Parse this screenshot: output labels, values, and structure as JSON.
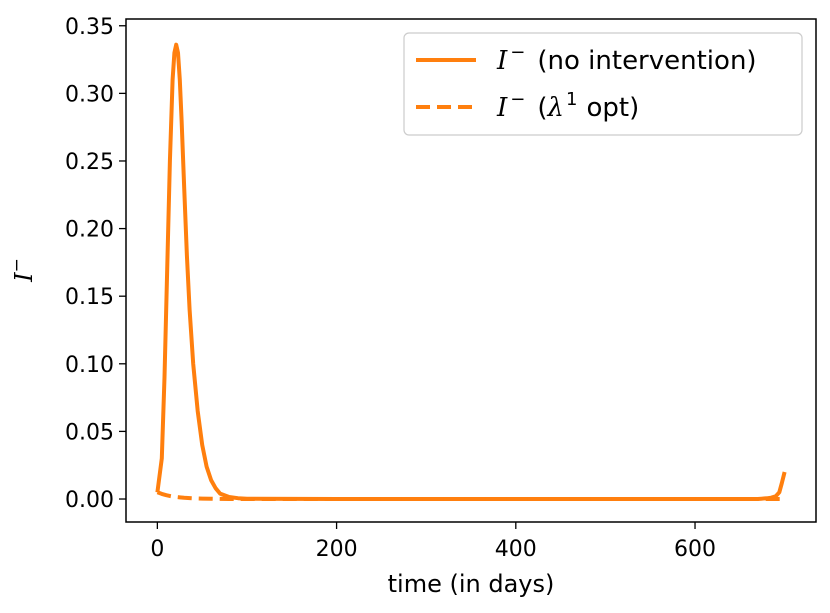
{
  "chart_data": {
    "type": "line",
    "xlabel": "time (in days)",
    "ylabel_symbol": "I",
    "ylabel_superscript": "−",
    "xlim": [
      -35,
      735
    ],
    "ylim": [
      -0.017,
      0.355
    ],
    "xticks": [
      0,
      200,
      400,
      600
    ],
    "xtick_labels": [
      "0",
      "200",
      "400",
      "600"
    ],
    "yticks": [
      0.0,
      0.05,
      0.1,
      0.15,
      0.2,
      0.25,
      0.3,
      0.35
    ],
    "ytick_labels": [
      "0.00",
      "0.05",
      "0.10",
      "0.15",
      "0.20",
      "0.25",
      "0.30",
      "0.35"
    ],
    "grid": false,
    "legend_position": "top-right",
    "series": [
      {
        "name_symbol": "I",
        "name_superscript": "−",
        "name_text": "(no intervention)",
        "color": "#ff7f0e",
        "style": "solid",
        "x": [
          0,
          5,
          8,
          11,
          14,
          17,
          19,
          21,
          23,
          25,
          27,
          30,
          33,
          36,
          40,
          45,
          50,
          55,
          60,
          65,
          70,
          80,
          90,
          100,
          200,
          300,
          400,
          500,
          600,
          650,
          670,
          680,
          685,
          690,
          694,
          697,
          700
        ],
        "y": [
          0.005,
          0.03,
          0.09,
          0.17,
          0.25,
          0.31,
          0.33,
          0.336,
          0.33,
          0.31,
          0.28,
          0.23,
          0.18,
          0.14,
          0.1,
          0.065,
          0.04,
          0.024,
          0.014,
          0.008,
          0.004,
          0.0015,
          0.0006,
          0.0002,
          0.0,
          0.0,
          0.0,
          0.0,
          0.0,
          0.0,
          0.0,
          0.0005,
          0.001,
          0.002,
          0.005,
          0.012,
          0.02
        ]
      },
      {
        "name_symbol": "I",
        "name_superscript": "−",
        "name_text_before": "(",
        "name_greek": "λ",
        "name_greek_superscript": "1",
        "name_text_after": "opt)",
        "color": "#ff7f0e",
        "style": "dashed",
        "x": [
          0,
          5,
          10,
          15,
          20,
          25,
          30,
          40,
          50,
          60,
          70,
          80,
          100,
          200,
          300,
          400,
          500,
          600,
          650,
          680,
          690,
          700
        ],
        "y": [
          0.005,
          0.0038,
          0.0028,
          0.0021,
          0.0016,
          0.0012,
          0.0009,
          0.0005,
          0.0003,
          0.0002,
          0.0001,
          0.0,
          0.0,
          0.0,
          0.0,
          0.0,
          0.0,
          0.0,
          0.0,
          0.0,
          0.0,
          0.0
        ]
      }
    ]
  }
}
